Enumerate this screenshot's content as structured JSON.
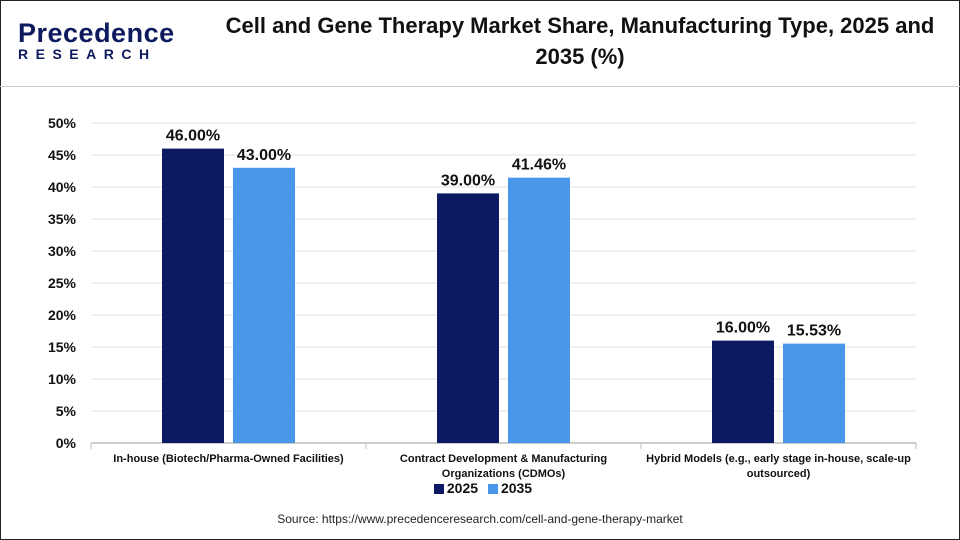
{
  "logo": {
    "line1": "Precedence",
    "line2": "RESEARCH"
  },
  "source": "Source: https://www.precedenceresearch.com/cell-and-gene-therapy-market",
  "chart_data": {
    "type": "bar",
    "title": "Cell and Gene Therapy Market Share, Manufacturing Type, 2025 and 2035 (%)",
    "categories": [
      "In-house (Biotech/Pharma-Owned Facilities)",
      "Contract Development & Manufacturing Organizations (CDMOs)",
      "Hybrid Models (e.g., early stage in-house, scale-up outsourced)"
    ],
    "series": [
      {
        "name": "2025",
        "values": [
          46.0,
          39.0,
          16.0
        ],
        "labels": [
          "46.00%",
          "39.00%",
          "16.00%"
        ],
        "color": "#0b1a63"
      },
      {
        "name": "2035",
        "values": [
          43.0,
          41.46,
          15.53
        ],
        "labels": [
          "43.00%",
          "41.46%",
          "15.53%"
        ],
        "color": "#4a96ea"
      }
    ],
    "ylim": [
      0,
      50
    ],
    "yticks": [
      "0%",
      "5%",
      "10%",
      "15%",
      "20%",
      "25%",
      "30%",
      "35%",
      "40%",
      "45%",
      "50%"
    ],
    "grid": true,
    "legend": "bottom"
  }
}
